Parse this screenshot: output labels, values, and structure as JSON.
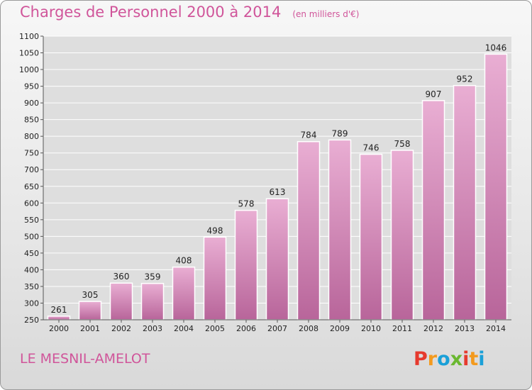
{
  "title": "Charges de Personnel 2000 à 2014",
  "title_unit": "(en milliers d'€)",
  "commune": "LE MESNIL-AMELOT",
  "logo": {
    "text": "Proxiti",
    "letters": [
      {
        "ch": "P",
        "color": "#e63a2e"
      },
      {
        "ch": "r",
        "color": "#f39a1e"
      },
      {
        "ch": "o",
        "color": "#1aa0d8"
      },
      {
        "ch": "x",
        "color": "#6ab830"
      },
      {
        "ch": "i",
        "color": "#e63a2e"
      },
      {
        "ch": "t",
        "color": "#f39a1e"
      },
      {
        "ch": "i",
        "color": "#1aa0d8"
      }
    ]
  },
  "colors": {
    "accent": "#d0559a",
    "bar_top": "#e9aed3",
    "bar_bottom": "#b8659a",
    "grid": "#ffffff"
  },
  "chart_data": {
    "type": "bar",
    "title": "Charges de Personnel 2000 à 2014",
    "ylabel": "",
    "xlabel": "",
    "ylim": [
      250,
      1100
    ],
    "yticks": [
      250,
      300,
      350,
      400,
      450,
      500,
      550,
      600,
      650,
      700,
      750,
      800,
      850,
      900,
      950,
      1000,
      1050,
      1100
    ],
    "grid": true,
    "categories": [
      "2000",
      "2001",
      "2002",
      "2003",
      "2004",
      "2005",
      "2006",
      "2007",
      "2008",
      "2009",
      "2010",
      "2011",
      "2012",
      "2013",
      "2014"
    ],
    "values": [
      261,
      305,
      360,
      359,
      408,
      498,
      578,
      613,
      784,
      789,
      746,
      758,
      907,
      952,
      1046
    ]
  }
}
